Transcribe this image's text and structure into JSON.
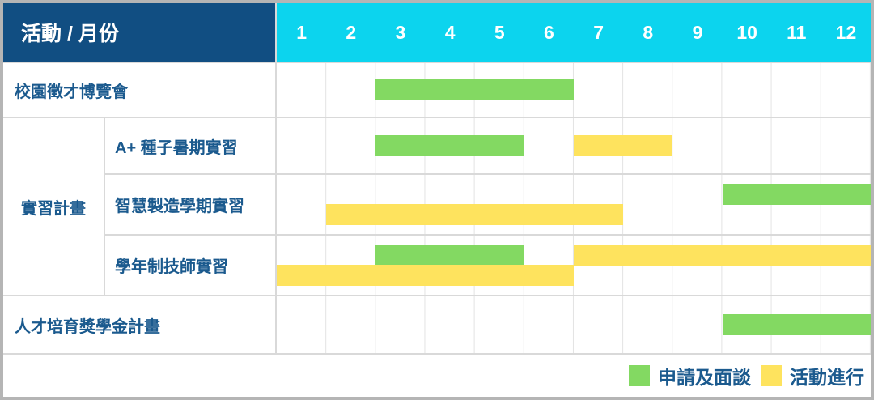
{
  "header": {
    "title": "活動 / 月份",
    "months": [
      "1",
      "2",
      "3",
      "4",
      "5",
      "6",
      "7",
      "8",
      "9",
      "10",
      "11",
      "12"
    ]
  },
  "colors": {
    "header_bg": "#114e82",
    "months_bg": "#0cd4ee",
    "green": "#83d962",
    "yellow": "#fee35e",
    "label_text": "#1b5a8e",
    "grid_line": "#e3e3e3",
    "row_border": "#d9d9d9",
    "outer_border": "#b5b5b5"
  },
  "legend": {
    "items": [
      {
        "color": "green",
        "label": "申請及面談"
      },
      {
        "color": "yellow",
        "label": "活動進行"
      }
    ]
  },
  "chart_data": {
    "type": "gantt",
    "x_unit": "month",
    "x_range": [
      1,
      12
    ],
    "corner_title": "活動 / 月份",
    "legend": {
      "green": "申請及面談",
      "yellow": "活動進行"
    },
    "rows": [
      {
        "label": "校園徵才博覽會",
        "group": null,
        "bars": [
          {
            "color": "green",
            "start": 3,
            "end": 6,
            "lane": "center"
          }
        ]
      },
      {
        "label": "A+ 種子暑期實習",
        "group": "實習計畫",
        "bars": [
          {
            "color": "green",
            "start": 3,
            "end": 5,
            "lane": "center"
          },
          {
            "color": "yellow",
            "start": 7,
            "end": 8,
            "lane": "center"
          }
        ]
      },
      {
        "label": "智慧製造學期實習",
        "group": "實習計畫",
        "bars": [
          {
            "color": "green",
            "start": 10,
            "end": 12,
            "lane": "top"
          },
          {
            "color": "yellow",
            "start": 2,
            "end": 7,
            "lane": "bottom"
          }
        ]
      },
      {
        "label": "學年制技師實習",
        "group": "實習計畫",
        "bars": [
          {
            "color": "green",
            "start": 3,
            "end": 5,
            "lane": "top"
          },
          {
            "color": "yellow",
            "start": 7,
            "end": 12,
            "lane": "top"
          },
          {
            "color": "yellow",
            "start": 1,
            "end": 6,
            "lane": "bottom"
          }
        ]
      },
      {
        "label": "人才培育獎學金計畫",
        "group": null,
        "bars": [
          {
            "color": "green",
            "start": 10,
            "end": 12,
            "lane": "center"
          }
        ]
      }
    ]
  }
}
